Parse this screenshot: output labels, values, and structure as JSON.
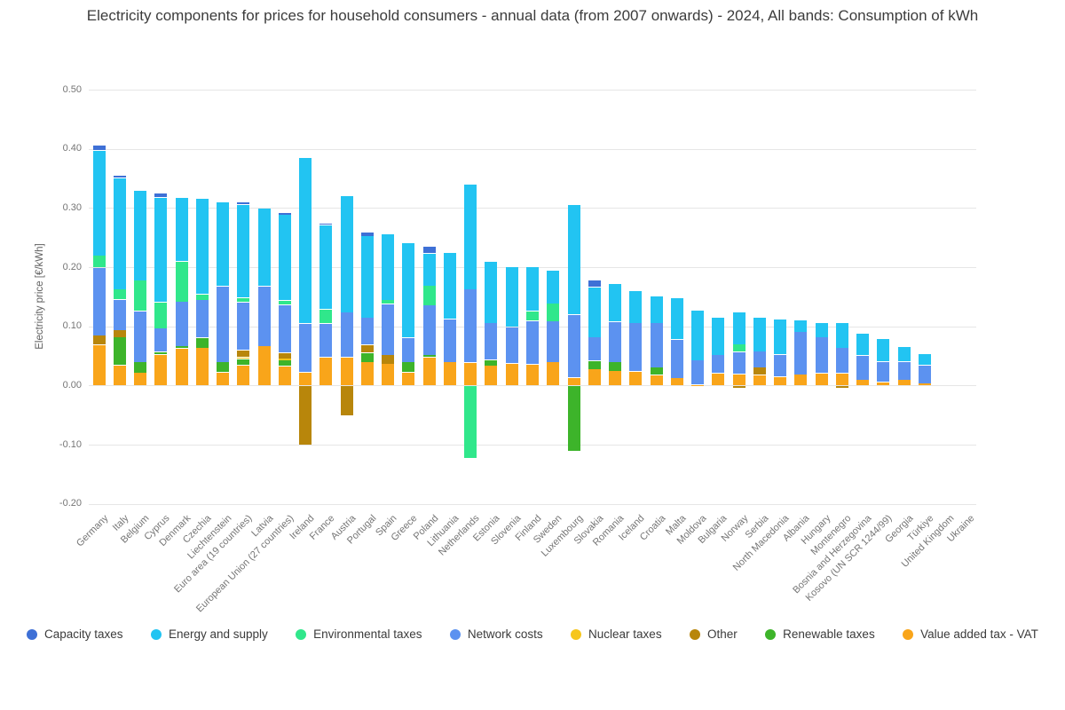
{
  "title": "Electricity components for prices for household consumers - annual data (from 2007 onwards) - 2024, All bands: Consumption of kWh",
  "y_axis": {
    "label": "Electricity price [€/kWh]",
    "min": -0.2,
    "max": 0.5,
    "ticks": [
      {
        "value": 0.5,
        "label": "0.50"
      },
      {
        "value": 0.4,
        "label": "0.40"
      },
      {
        "value": 0.3,
        "label": "0.30"
      },
      {
        "value": 0.2,
        "label": "0.20"
      },
      {
        "value": 0.1,
        "label": "0.10"
      },
      {
        "value": 0.0,
        "label": "0.00"
      },
      {
        "value": -0.1,
        "label": "-0.10"
      },
      {
        "value": -0.2,
        "label": "-0.20"
      }
    ]
  },
  "chart_data": {
    "type": "bar",
    "stacked": true,
    "unit": "€/kWh",
    "legend": [
      {
        "key": "capacity",
        "label": "Capacity taxes",
        "color": "#3e70d6"
      },
      {
        "key": "energy",
        "label": "Energy and supply",
        "color": "#22c4f2"
      },
      {
        "key": "environmental",
        "label": "Environmental taxes",
        "color": "#30e78b"
      },
      {
        "key": "network",
        "label": "Network costs",
        "color": "#5c92f0"
      },
      {
        "key": "nuclear",
        "label": "Nuclear taxes",
        "color": "#f6c61c"
      },
      {
        "key": "other",
        "label": "Other",
        "color": "#b8860b"
      },
      {
        "key": "renewable",
        "label": "Renewable taxes",
        "color": "#3db42a"
      },
      {
        "key": "vat",
        "label": "Value added tax - VAT",
        "color": "#f9a51a"
      }
    ],
    "stack_order": [
      "vat",
      "renewable",
      "nuclear",
      "other",
      "network",
      "environmental",
      "energy",
      "capacity"
    ],
    "countries": [
      {
        "name": "Germany",
        "c": {
          "vat": 0.069,
          "other": 0.016,
          "network": 0.115,
          "environmental": 0.02,
          "energy": 0.178,
          "capacity": 0.008
        }
      },
      {
        "name": "Italy",
        "c": {
          "vat": 0.035,
          "renewable": 0.047,
          "other": 0.012,
          "network": 0.052,
          "environmental": 0.017,
          "energy": 0.188,
          "capacity": 0.005
        }
      },
      {
        "name": "Belgium",
        "c": {
          "vat": 0.022,
          "renewable": 0.018,
          "network": 0.086,
          "environmental": 0.052,
          "energy": 0.152
        }
      },
      {
        "name": "Cyprus",
        "c": {
          "vat": 0.053,
          "renewable": 0.004,
          "network": 0.04,
          "environmental": 0.044,
          "energy": 0.177,
          "capacity": 0.007
        }
      },
      {
        "name": "Denmark",
        "c": {
          "vat": 0.063,
          "renewable": 0.004,
          "network": 0.075,
          "environmental": 0.068,
          "energy": 0.108
        }
      },
      {
        "name": "Czechia",
        "c": {
          "vat": 0.064,
          "renewable": 0.017,
          "network": 0.064,
          "environmental": 0.01,
          "energy": 0.161
        }
      },
      {
        "name": "Liechtenstein",
        "c": {
          "vat": 0.023,
          "renewable": 0.017,
          "network": 0.128,
          "energy": 0.142
        }
      },
      {
        "name": "Euro area (19 countries)",
        "c": {
          "vat": 0.035,
          "renewable": 0.01,
          "nuclear": 0.003,
          "other": 0.012,
          "network": 0.081,
          "environmental": 0.008,
          "energy": 0.157,
          "capacity": 0.004
        }
      },
      {
        "name": "Latvia",
        "c": {
          "vat": 0.067,
          "network": 0.101,
          "energy": 0.132
        }
      },
      {
        "name": "European Union (27 countries)",
        "c": {
          "vat": 0.033,
          "renewable": 0.01,
          "nuclear": 0.003,
          "other": 0.01,
          "network": 0.081,
          "environmental": 0.007,
          "energy": 0.145,
          "capacity": 0.004
        }
      },
      {
        "name": "Ireland",
        "c": {
          "vat": 0.023,
          "other": -0.1,
          "network": 0.082,
          "energy": 0.281
        }
      },
      {
        "name": "France",
        "c": {
          "vat": 0.048,
          "network": 0.057,
          "environmental": 0.024,
          "energy": 0.143,
          "capacity": 0.003
        }
      },
      {
        "name": "Austria",
        "c": {
          "vat": 0.048,
          "other": -0.051,
          "network": 0.076,
          "energy": 0.197
        }
      },
      {
        "name": "Portugal",
        "c": {
          "vat": 0.04,
          "renewable": 0.016,
          "other": 0.013,
          "network": 0.046,
          "energy": 0.138,
          "capacity": 0.006
        }
      },
      {
        "name": "Spain",
        "c": {
          "vat": 0.037,
          "other": 0.015,
          "network": 0.086,
          "environmental": 0.007,
          "energy": 0.112
        }
      },
      {
        "name": "Greece",
        "c": {
          "vat": 0.023,
          "renewable": 0.017,
          "network": 0.041,
          "energy": 0.161
        }
      },
      {
        "name": "Poland",
        "c": {
          "vat": 0.048,
          "renewable": 0.004,
          "network": 0.084,
          "environmental": 0.033,
          "energy": 0.055,
          "capacity": 0.011
        }
      },
      {
        "name": "Lithuania",
        "c": {
          "vat": 0.04,
          "network": 0.073,
          "energy": 0.112
        }
      },
      {
        "name": "Netherlands",
        "c": {
          "vat": 0.039,
          "environmental": -0.123,
          "network": 0.124,
          "energy": 0.178
        }
      },
      {
        "name": "Estonia",
        "c": {
          "vat": 0.034,
          "renewable": 0.01,
          "network": 0.062,
          "energy": 0.104
        }
      },
      {
        "name": "Slovenia",
        "c": {
          "vat": 0.038,
          "network": 0.061,
          "energy": 0.102
        }
      },
      {
        "name": "Finland",
        "c": {
          "vat": 0.036,
          "network": 0.074,
          "environmental": 0.016,
          "energy": 0.075
        }
      },
      {
        "name": "Sweden",
        "c": {
          "vat": 0.04,
          "network": 0.069,
          "environmental": 0.03,
          "energy": 0.056
        }
      },
      {
        "name": "Luxembourg",
        "c": {
          "vat": 0.014,
          "renewable": -0.111,
          "network": 0.106,
          "energy": 0.186
        }
      },
      {
        "name": "Slovakia",
        "c": {
          "vat": 0.028,
          "renewable": 0.014,
          "network": 0.04,
          "energy": 0.085,
          "capacity": 0.011
        }
      },
      {
        "name": "Romania",
        "c": {
          "vat": 0.025,
          "renewable": 0.015,
          "network": 0.068,
          "energy": 0.064
        }
      },
      {
        "name": "Iceland",
        "c": {
          "vat": 0.024,
          "network": 0.082,
          "energy": 0.054
        }
      },
      {
        "name": "Croatia",
        "c": {
          "vat": 0.018,
          "renewable": 0.013,
          "network": 0.075,
          "energy": 0.045
        }
      },
      {
        "name": "Malta",
        "c": {
          "vat": 0.013,
          "network": 0.065,
          "energy": 0.07
        }
      },
      {
        "name": "Moldova",
        "c": {
          "vat": 0.002,
          "network": 0.041,
          "energy": 0.084
        }
      },
      {
        "name": "Bulgaria",
        "c": {
          "vat": 0.021,
          "network": 0.031,
          "energy": 0.064
        }
      },
      {
        "name": "Norway",
        "c": {
          "vat": 0.02,
          "other": -0.004,
          "network": 0.037,
          "environmental": 0.013,
          "energy": 0.055
        }
      },
      {
        "name": "Serbia",
        "c": {
          "vat": 0.018,
          "other": 0.013,
          "network": 0.027,
          "energy": 0.058
        }
      },
      {
        "name": "North Macedonia",
        "c": {
          "vat": 0.015,
          "network": 0.038,
          "energy": 0.06
        }
      },
      {
        "name": "Albania",
        "c": {
          "vat": 0.019,
          "network": 0.072,
          "energy": 0.02
        }
      },
      {
        "name": "Hungary",
        "c": {
          "vat": 0.021,
          "network": 0.061,
          "energy": 0.024
        }
      },
      {
        "name": "Montenegro",
        "c": {
          "vat": 0.021,
          "other": -0.004,
          "network": 0.043,
          "energy": 0.043
        }
      },
      {
        "name": "Bosnia and Herzegovina",
        "c": {
          "vat": 0.01,
          "network": 0.041,
          "energy": 0.038
        }
      },
      {
        "name": "Kosovo (UN SCR 1244/99)",
        "c": {
          "vat": 0.006,
          "network": 0.035,
          "energy": 0.038
        }
      },
      {
        "name": "Georgia",
        "c": {
          "vat": 0.01,
          "network": 0.031,
          "energy": 0.025
        }
      },
      {
        "name": "Türkiye",
        "c": {
          "vat": 0.004,
          "network": 0.031,
          "energy": 0.019
        }
      },
      {
        "name": "United Kingdom",
        "c": {}
      },
      {
        "name": "Ukraine",
        "c": {}
      }
    ]
  }
}
